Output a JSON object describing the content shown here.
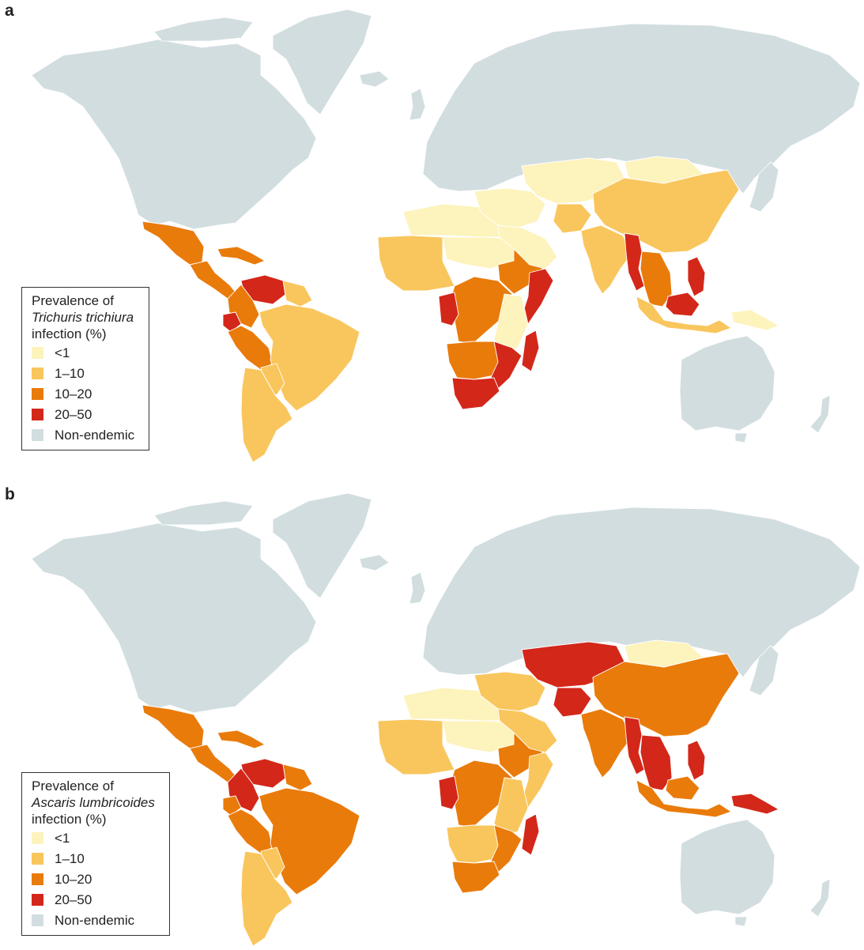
{
  "colors": {
    "lt1": "#fdf3bc",
    "r1_10": "#f9c65d",
    "r10_20": "#e97b0b",
    "r20_50": "#d3271a",
    "nonendemic": "#d2dde0",
    "border": "#ffffff"
  },
  "panels": [
    {
      "letter": "a",
      "legend": {
        "title_line1": "Prevalence of",
        "title_species": "Trichuris trichiura",
        "title_line3": "infection (%)",
        "items": [
          {
            "label": "<1",
            "color_key": "lt1"
          },
          {
            "label": "1–10",
            "color_key": "r1_10"
          },
          {
            "label": "10–20",
            "color_key": "r10_20"
          },
          {
            "label": "20–50",
            "color_key": "r20_50"
          },
          {
            "label": "Non-endemic",
            "color_key": "nonendemic"
          }
        ]
      },
      "regions": {
        "mexico": "r10_20",
        "central_america": "r10_20",
        "caribbean": "r10_20",
        "venezuela": "r20_50",
        "colombia": "r10_20",
        "guyanas": "r1_10",
        "ecuador": "r20_50",
        "peru": "r10_20",
        "brazil": "r1_10",
        "bolivia": "r1_10",
        "southern_cone": "r1_10",
        "west_africa": "r1_10",
        "sahel": "lt1",
        "north_africa": "lt1",
        "central_africa": "r10_20",
        "congo_west": "r20_50",
        "horn_africa": "r10_20",
        "somalia": "r20_50",
        "east_africa": "lt1",
        "southern_africa": "r10_20",
        "mozambique": "r20_50",
        "south_africa": "r20_50",
        "madagascar": "r20_50",
        "middle_east": "lt1",
        "arabia": "lt1",
        "central_asia": "lt1",
        "mongolia": "lt1",
        "afghanistan": "r1_10",
        "china": "r1_10",
        "india": "r1_10",
        "myanmar": "r20_50",
        "se_asia": "r10_20",
        "philippines": "r20_50",
        "indonesia": "r1_10",
        "borneo": "r20_50",
        "new_guinea": "lt1"
      }
    },
    {
      "letter": "b",
      "legend": {
        "title_line1": "Prevalence of",
        "title_species": "Ascaris lumbricoides",
        "title_line3": "infection (%)",
        "items": [
          {
            "label": "<1",
            "color_key": "lt1"
          },
          {
            "label": "1–10",
            "color_key": "r1_10"
          },
          {
            "label": "10–20",
            "color_key": "r10_20"
          },
          {
            "label": "20–50",
            "color_key": "r20_50"
          },
          {
            "label": "Non-endemic",
            "color_key": "nonendemic"
          }
        ]
      },
      "regions": {
        "mexico": "r10_20",
        "central_america": "r10_20",
        "caribbean": "r10_20",
        "venezuela": "r20_50",
        "colombia": "r20_50",
        "guyanas": "r10_20",
        "ecuador": "r10_20",
        "peru": "r10_20",
        "brazil": "r10_20",
        "bolivia": "r1_10",
        "southern_cone": "r1_10",
        "west_africa": "r1_10",
        "sahel": "lt1",
        "north_africa": "lt1",
        "central_africa": "r10_20",
        "congo_west": "r20_50",
        "horn_africa": "r10_20",
        "somalia": "r1_10",
        "east_africa": "r1_10",
        "southern_africa": "r1_10",
        "mozambique": "r10_20",
        "south_africa": "r10_20",
        "madagascar": "r20_50",
        "middle_east": "r1_10",
        "arabia": "r1_10",
        "central_asia": "r20_50",
        "mongolia": "lt1",
        "afghanistan": "r20_50",
        "china": "r10_20",
        "india": "r10_20",
        "myanmar": "r20_50",
        "se_asia": "r20_50",
        "philippines": "r20_50",
        "indonesia": "r10_20",
        "borneo": "r10_20",
        "new_guinea": "r20_50"
      }
    }
  ]
}
